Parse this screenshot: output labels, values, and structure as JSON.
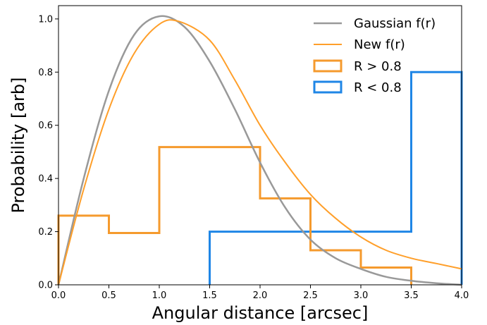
{
  "chart_data": {
    "type": "line",
    "xlabel": "Angular distance [arcsec]",
    "ylabel": "Probability [arb]",
    "xlim": [
      0.0,
      4.0
    ],
    "ylim": [
      0.0,
      1.05
    ],
    "xticks": [
      "0.0",
      "0.5",
      "1.0",
      "1.5",
      "2.0",
      "2.5",
      "3.0",
      "3.5",
      "4.0"
    ],
    "yticks": [
      "0.0",
      "0.2",
      "0.4",
      "0.6",
      "0.8",
      "1.0"
    ],
    "grid": false,
    "legend_position": "top-right",
    "colors": {
      "gaussian": "#999999",
      "new": "#ff9f2a",
      "hist_high": "#f59a2d",
      "hist_low": "#1f86e6"
    },
    "series": [
      {
        "name": "Gaussian f(r)",
        "kind": "line",
        "x": [
          0.0,
          0.25,
          0.5,
          0.75,
          1.0,
          1.25,
          1.5,
          1.75,
          2.0,
          2.25,
          2.5,
          2.75,
          3.0,
          3.25,
          3.5,
          3.75,
          4.0
        ],
        "y": [
          0.0,
          0.4,
          0.73,
          0.94,
          1.01,
          0.97,
          0.84,
          0.66,
          0.46,
          0.29,
          0.17,
          0.1,
          0.06,
          0.03,
          0.015,
          0.006,
          0.0
        ]
      },
      {
        "name": "New f(r)",
        "kind": "line",
        "x": [
          0.0,
          0.25,
          0.5,
          0.75,
          1.0,
          1.2,
          1.5,
          1.75,
          2.0,
          2.25,
          2.5,
          2.75,
          3.0,
          3.25,
          3.5,
          3.75,
          4.0
        ],
        "y": [
          0.0,
          0.36,
          0.66,
          0.87,
          0.98,
          0.99,
          0.92,
          0.77,
          0.6,
          0.46,
          0.34,
          0.25,
          0.18,
          0.13,
          0.1,
          0.08,
          0.06
        ]
      },
      {
        "name": "R > 0.8",
        "kind": "step",
        "edges": [
          0.0,
          0.5,
          1.0,
          1.5,
          2.0,
          2.5,
          3.0,
          3.5
        ],
        "values": [
          0.26,
          0.195,
          0.518,
          0.518,
          0.325,
          0.13,
          0.065
        ]
      },
      {
        "name": "R < 0.8",
        "kind": "step",
        "edges": [
          1.5,
          3.5,
          4.0
        ],
        "values": [
          0.2,
          0.8
        ]
      }
    ]
  }
}
